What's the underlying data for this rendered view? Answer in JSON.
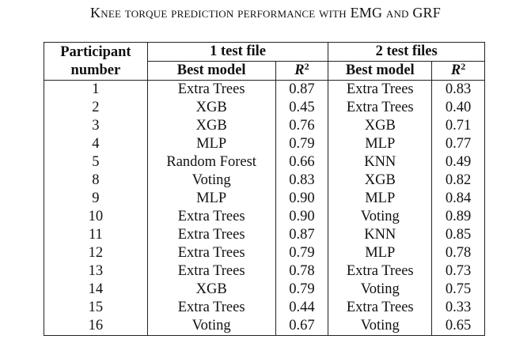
{
  "caption": "Knee torque prediction performance with EMG and GRF",
  "table": {
    "header": {
      "participant_line1": "Participant",
      "participant_line2": "number",
      "group1": "1 test file",
      "group2": "2 test files",
      "best_model": "Best model",
      "r2_symbol": "R",
      "r2_exponent": "2"
    },
    "rows": [
      {
        "participant": "1",
        "model_1": "Extra Trees",
        "r2_1": "0.87",
        "model_2": "Extra Trees",
        "r2_2": "0.83"
      },
      {
        "participant": "2",
        "model_1": "XGB",
        "r2_1": "0.45",
        "model_2": "Extra Trees",
        "r2_2": "0.40"
      },
      {
        "participant": "3",
        "model_1": "XGB",
        "r2_1": "0.76",
        "model_2": "XGB",
        "r2_2": "0.71"
      },
      {
        "participant": "4",
        "model_1": "MLP",
        "r2_1": "0.79",
        "model_2": "MLP",
        "r2_2": "0.77"
      },
      {
        "participant": "5",
        "model_1": "Random Forest",
        "r2_1": "0.66",
        "model_2": "KNN",
        "r2_2": "0.49"
      },
      {
        "participant": "8",
        "model_1": "Voting",
        "r2_1": "0.83",
        "model_2": "XGB",
        "r2_2": "0.82"
      },
      {
        "participant": "9",
        "model_1": "MLP",
        "r2_1": "0.90",
        "model_2": "MLP",
        "r2_2": "0.84"
      },
      {
        "participant": "10",
        "model_1": "Extra Trees",
        "r2_1": "0.90",
        "model_2": "Voting",
        "r2_2": "0.89"
      },
      {
        "participant": "11",
        "model_1": "Extra Trees",
        "r2_1": "0.87",
        "model_2": "KNN",
        "r2_2": "0.85"
      },
      {
        "participant": "12",
        "model_1": "Extra Trees",
        "r2_1": "0.79",
        "model_2": "MLP",
        "r2_2": "0.78"
      },
      {
        "participant": "13",
        "model_1": "Extra Trees",
        "r2_1": "0.78",
        "model_2": "Extra Trees",
        "r2_2": "0.73"
      },
      {
        "participant": "14",
        "model_1": "XGB",
        "r2_1": "0.79",
        "model_2": "Voting",
        "r2_2": "0.75"
      },
      {
        "participant": "15",
        "model_1": "Extra Trees",
        "r2_1": "0.44",
        "model_2": "Extra Trees",
        "r2_2": "0.33"
      },
      {
        "participant": "16",
        "model_1": "Voting",
        "r2_1": "0.67",
        "model_2": "Voting",
        "r2_2": "0.65"
      }
    ]
  }
}
